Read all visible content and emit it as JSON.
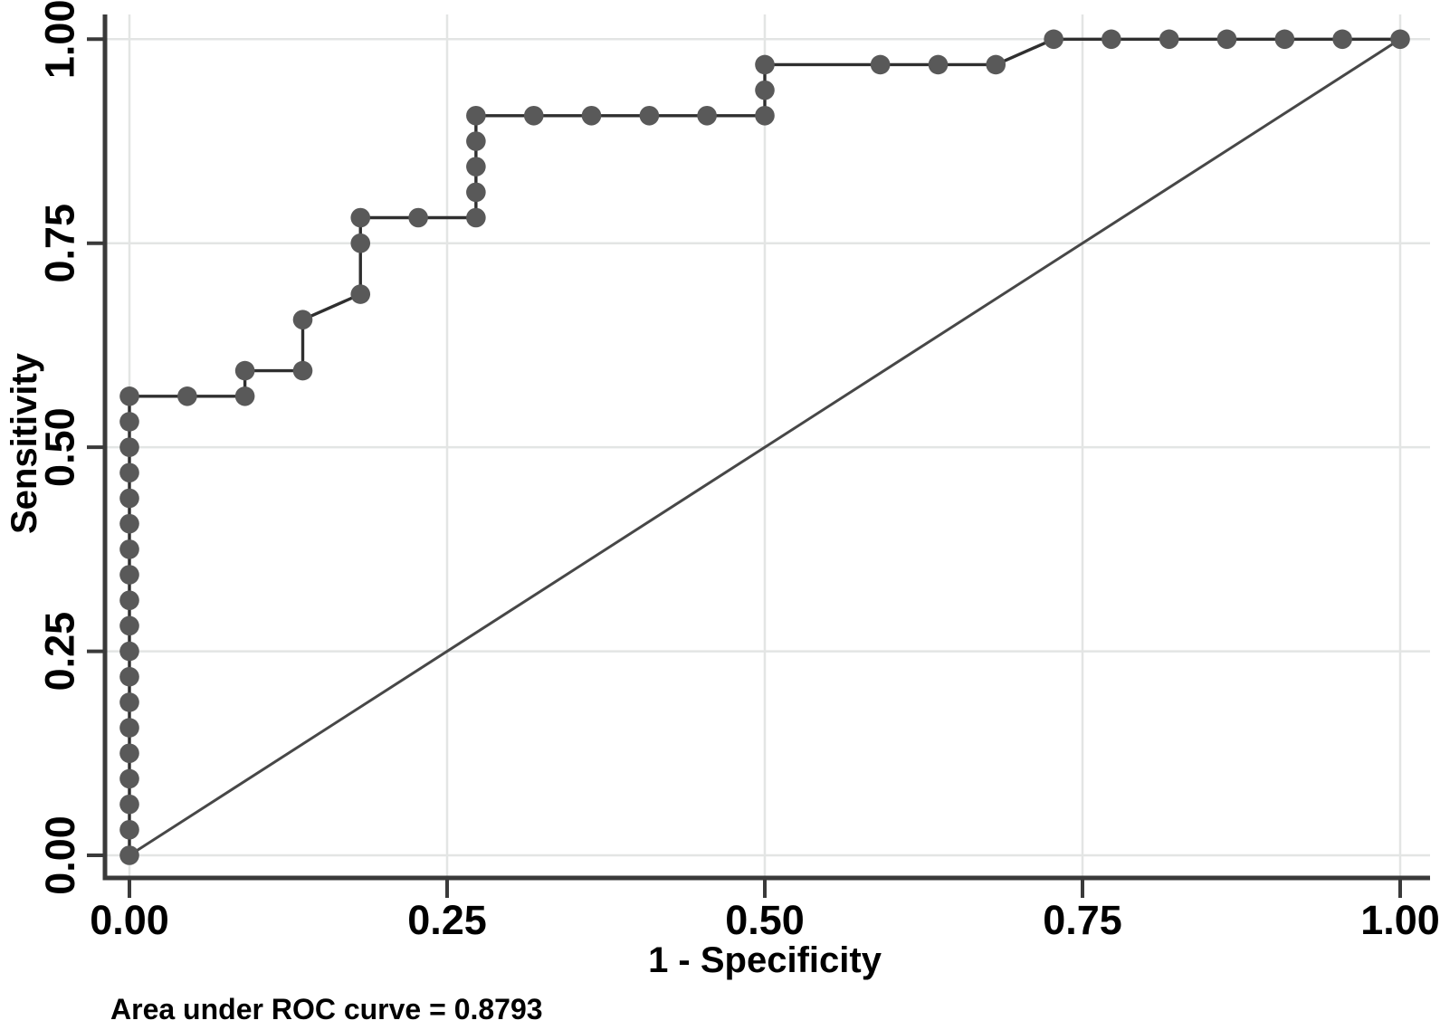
{
  "chart_data": {
    "type": "line",
    "subtype": "roc-curve",
    "title": "",
    "xlabel": "1 - Specificity",
    "ylabel": "Sensitivity",
    "xlim": [
      0,
      1
    ],
    "ylim": [
      0,
      1
    ],
    "grid": true,
    "legend": "none",
    "caption": "Area under ROC curve = 0.8793",
    "auc": 0.8793,
    "x_ticks": [
      {
        "value": 0.0,
        "label": "0.00"
      },
      {
        "value": 0.25,
        "label": "0.25"
      },
      {
        "value": 0.5,
        "label": "0.50"
      },
      {
        "value": 0.75,
        "label": "0.75"
      },
      {
        "value": 1.0,
        "label": "1.00"
      }
    ],
    "y_ticks": [
      {
        "value": 0.0,
        "label": "0.00"
      },
      {
        "value": 0.25,
        "label": "0.25"
      },
      {
        "value": 0.5,
        "label": "0.50"
      },
      {
        "value": 0.75,
        "label": "0.75"
      },
      {
        "value": 1.0,
        "label": "1.00"
      }
    ],
    "colors": {
      "curve_line": "#2f2f2f",
      "marker": "#595959",
      "reference_line": "#474747",
      "grid_line": "#e3e5e4",
      "axis_line": "#3a3a3a",
      "text": "#000000",
      "background": "#ffffff"
    },
    "series": [
      {
        "name": "ROC curve",
        "style": "step-line-with-markers",
        "points": [
          [
            0,
            0
          ],
          [
            0,
            0.0313
          ],
          [
            0,
            0.0625
          ],
          [
            0,
            0.0938
          ],
          [
            0,
            0.125
          ],
          [
            0,
            0.1563
          ],
          [
            0,
            0.1875
          ],
          [
            0,
            0.2188
          ],
          [
            0,
            0.25
          ],
          [
            0,
            0.2813
          ],
          [
            0,
            0.3125
          ],
          [
            0,
            0.3438
          ],
          [
            0,
            0.375
          ],
          [
            0,
            0.4063
          ],
          [
            0,
            0.4375
          ],
          [
            0,
            0.4688
          ],
          [
            0,
            0.5
          ],
          [
            0,
            0.5313
          ],
          [
            0,
            0.5625
          ],
          [
            0.0455,
            0.5625
          ],
          [
            0.0909,
            0.5625
          ],
          [
            0.0909,
            0.5938
          ],
          [
            0.1364,
            0.5938
          ],
          [
            0.1364,
            0.6563
          ],
          [
            0.1818,
            0.6875
          ],
          [
            0.1818,
            0.75
          ],
          [
            0.1818,
            0.7813
          ],
          [
            0.2273,
            0.7813
          ],
          [
            0.2727,
            0.7813
          ],
          [
            0.2727,
            0.8125
          ],
          [
            0.2727,
            0.8438
          ],
          [
            0.2727,
            0.875
          ],
          [
            0.2727,
            0.9063
          ],
          [
            0.3182,
            0.9063
          ],
          [
            0.3636,
            0.9063
          ],
          [
            0.4091,
            0.9063
          ],
          [
            0.4545,
            0.9063
          ],
          [
            0.5,
            0.9063
          ],
          [
            0.5,
            0.9375
          ],
          [
            0.5,
            0.9688
          ],
          [
            0.5909,
            0.9688
          ],
          [
            0.6364,
            0.9688
          ],
          [
            0.6818,
            0.9688
          ],
          [
            0.7273,
            1
          ],
          [
            0.7727,
            1
          ],
          [
            0.8182,
            1
          ],
          [
            0.8636,
            1
          ],
          [
            0.9091,
            1
          ],
          [
            0.9545,
            1
          ],
          [
            1,
            1
          ]
        ]
      },
      {
        "name": "reference diagonal",
        "style": "straight-line",
        "points": [
          [
            0,
            0
          ],
          [
            1,
            1
          ]
        ]
      }
    ]
  }
}
